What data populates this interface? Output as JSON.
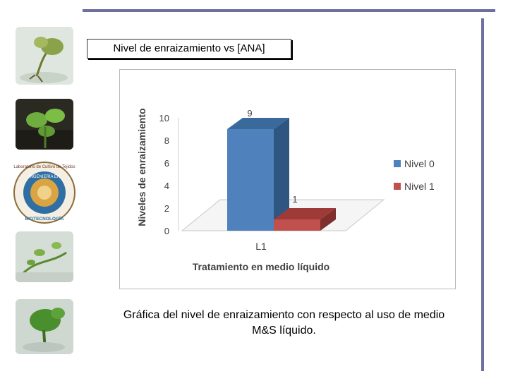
{
  "slide": {
    "title": "Nivel de enraizamiento vs [ANA]",
    "caption": "Gráfica del nivel de enraizamiento con respecto al uso de medio M&S líquido."
  },
  "logo": {
    "text_top": "Laboratorio de Cultivo de Tejidos",
    "text_ring": "INGENIERÍA EN",
    "text_bottom": "BIOTECNOLOGÍA"
  },
  "colors": {
    "rule": "#6e6f9e",
    "series_0": "#4f81bd",
    "series_1": "#c0504d"
  },
  "chart_data": {
    "type": "bar",
    "categories": [
      "L1"
    ],
    "series": [
      {
        "name": "Nivel 0",
        "values": [
          9
        ]
      },
      {
        "name": "Nivel 1",
        "values": [
          1
        ]
      }
    ],
    "data_labels": [
      "9",
      "1"
    ],
    "xlabel": "Tratamiento en medio líquido",
    "ylabel": "Niveles de enraizamiento",
    "ylim": [
      0,
      10
    ],
    "yticks": [
      "0",
      "2",
      "4",
      "6",
      "8",
      "10"
    ],
    "legend": "right",
    "grid": false,
    "three_d": true
  }
}
